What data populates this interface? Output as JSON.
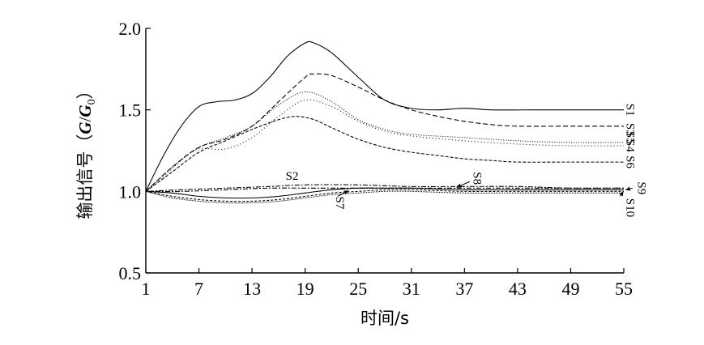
{
  "chart_data": {
    "type": "line",
    "title": "",
    "xlabel": "时间/s",
    "ylabel": {
      "prefix": "输出信号（",
      "var1": "G",
      "sep": "/",
      "var2": "G",
      "sub": "0",
      "suffix": "）"
    },
    "xlim": [
      1,
      55
    ],
    "ylim": [
      0.5,
      2.0
    ],
    "xticks": [
      "1",
      "7",
      "13",
      "19",
      "25",
      "31",
      "37",
      "43",
      "49",
      "55"
    ],
    "yticks": [
      "0.5",
      "1.0",
      "1.5",
      "2.0"
    ],
    "grid": false,
    "legend": "none",
    "series": [
      {
        "name": "S1",
        "dash": "",
        "x": [
          1,
          3,
          5,
          7,
          9,
          11,
          13,
          15,
          17,
          19,
          20,
          22,
          25,
          28,
          31,
          34,
          37,
          40,
          45,
          50,
          55
        ],
        "y": [
          1.0,
          1.22,
          1.4,
          1.52,
          1.55,
          1.56,
          1.6,
          1.7,
          1.83,
          1.91,
          1.91,
          1.85,
          1.7,
          1.56,
          1.51,
          1.5,
          1.51,
          1.5,
          1.5,
          1.5,
          1.5
        ]
      },
      {
        "name": "S2",
        "dash": "2 2 6 2",
        "x": [
          1,
          5,
          10,
          15,
          19,
          25,
          31,
          37,
          43,
          49,
          55
        ],
        "y": [
          1.0,
          1.01,
          1.02,
          1.03,
          1.04,
          1.04,
          1.03,
          1.03,
          1.03,
          1.02,
          1.02
        ]
      },
      {
        "name": "S3",
        "dash": "6 3",
        "x": [
          1,
          4,
          7,
          10,
          13,
          16,
          19,
          20,
          22,
          25,
          28,
          31,
          34,
          37,
          40,
          43,
          49,
          55
        ],
        "y": [
          1.0,
          1.15,
          1.27,
          1.32,
          1.4,
          1.55,
          1.7,
          1.72,
          1.71,
          1.64,
          1.56,
          1.5,
          1.46,
          1.43,
          1.41,
          1.4,
          1.4,
          1.4
        ]
      },
      {
        "name": "S4",
        "dash": "1 2",
        "x": [
          1,
          4,
          7,
          10,
          13,
          16,
          19,
          22,
          25,
          28,
          31,
          37,
          43,
          49,
          55
        ],
        "y": [
          1.0,
          1.15,
          1.27,
          1.33,
          1.4,
          1.53,
          1.61,
          1.55,
          1.44,
          1.38,
          1.35,
          1.33,
          1.31,
          1.3,
          1.3
        ]
      },
      {
        "name": "S5",
        "dash": "1 3",
        "x": [
          1,
          3,
          5,
          7,
          10,
          13,
          16,
          19,
          22,
          25,
          28,
          31,
          37,
          43,
          49,
          55
        ],
        "y": [
          1.0,
          1.09,
          1.19,
          1.26,
          1.26,
          1.33,
          1.46,
          1.56,
          1.52,
          1.43,
          1.37,
          1.34,
          1.31,
          1.29,
          1.28,
          1.28
        ]
      },
      {
        "name": "S6",
        "dash": "4 2",
        "x": [
          1,
          4,
          7,
          10,
          13,
          16,
          18,
          20,
          22,
          25,
          28,
          31,
          34,
          37,
          40,
          43,
          49,
          55
        ],
        "y": [
          1.0,
          1.12,
          1.24,
          1.31,
          1.38,
          1.44,
          1.46,
          1.44,
          1.39,
          1.32,
          1.27,
          1.24,
          1.22,
          1.2,
          1.19,
          1.18,
          1.18,
          1.18
        ]
      },
      {
        "name": "S7",
        "dash": "",
        "x": [
          1,
          4,
          7,
          10,
          13,
          16,
          19,
          22,
          25,
          28,
          31,
          37,
          43,
          49,
          55
        ],
        "y": [
          1.0,
          0.99,
          0.97,
          0.96,
          0.96,
          0.97,
          0.99,
          1.01,
          1.02,
          1.02,
          1.02,
          1.01,
          1.01,
          1.01,
          1.01
        ]
      },
      {
        "name": "S8",
        "dash": "6 2 2 2",
        "x": [
          1,
          5,
          10,
          15,
          19,
          25,
          31,
          37,
          43,
          49,
          55
        ],
        "y": [
          1.0,
          1.0,
          1.01,
          1.02,
          1.02,
          1.02,
          1.02,
          1.02,
          1.02,
          1.02,
          1.02
        ]
      },
      {
        "name": "S9",
        "dash": "3 2",
        "x": [
          1,
          4,
          7,
          10,
          13,
          16,
          19,
          22,
          25,
          28,
          31,
          37,
          43,
          49,
          55
        ],
        "y": [
          1.0,
          0.97,
          0.95,
          0.94,
          0.94,
          0.95,
          0.97,
          0.99,
          1.0,
          1.01,
          1.01,
          1.0,
          1.0,
          1.0,
          1.0
        ]
      },
      {
        "name": "S10",
        "dash": "1 1",
        "x": [
          1,
          4,
          7,
          10,
          13,
          16,
          19,
          22,
          25,
          28,
          31,
          37,
          43,
          49,
          55
        ],
        "y": [
          1.0,
          0.96,
          0.94,
          0.93,
          0.93,
          0.94,
          0.96,
          0.98,
          0.99,
          1.0,
          1.0,
          0.99,
          0.99,
          0.99,
          0.99
        ]
      }
    ],
    "labels": [
      {
        "text": "S1",
        "x": 55.3,
        "y": 1.5,
        "rotate": 90
      },
      {
        "text": "S3",
        "x": 55.3,
        "y": 1.38,
        "rotate": 90
      },
      {
        "text": "S5",
        "x": 55.3,
        "y": 1.33,
        "rotate": 90
      },
      {
        "text": "S4",
        "x": 55.3,
        "y": 1.28,
        "rotate": 90
      },
      {
        "text": "S6",
        "x": 55.3,
        "y": 1.18,
        "rotate": 90
      },
      {
        "text": "S9",
        "x": 56.6,
        "y": 1.02,
        "rotate": 90
      },
      {
        "text": "S10",
        "x": 55.3,
        "y": 0.9,
        "rotate": 90
      },
      {
        "text": "S2",
        "x": 16.8,
        "y": 1.07,
        "rotate": 0
      },
      {
        "text": "S8",
        "x": 38.0,
        "y": 1.08,
        "rotate": 90
      },
      {
        "text": "S7",
        "x": 22.5,
        "y": 0.93,
        "rotate": 90
      }
    ],
    "arrows": [
      {
        "from": [
          37.6,
          1.06
        ],
        "to": [
          36.1,
          1.025
        ]
      },
      {
        "from": [
          22.7,
          0.97
        ],
        "to": [
          23.9,
          1.005
        ]
      },
      {
        "from": [
          56.0,
          1.02
        ],
        "to": [
          55.2,
          1.01
        ]
      },
      {
        "from": [
          54.6,
          0.97
        ],
        "to": [
          54.95,
          1.0
        ]
      }
    ]
  }
}
